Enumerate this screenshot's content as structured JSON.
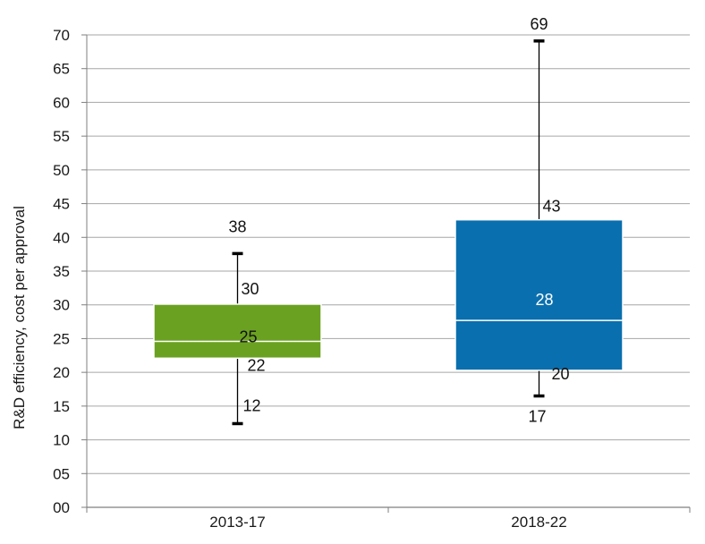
{
  "chart_data": {
    "type": "box",
    "title": "",
    "ylabel": "R&D efficiency, cost per approval",
    "ylim": [
      0,
      70
    ],
    "ytick_values": [
      0,
      5,
      10,
      15,
      20,
      25,
      30,
      35,
      40,
      45,
      50,
      55,
      60,
      65,
      70
    ],
    "ytick_labels": [
      "00",
      "05",
      "10",
      "15",
      "20",
      "25",
      "30",
      "35",
      "40",
      "45",
      "50",
      "55",
      "60",
      "65",
      "70"
    ],
    "grid": true,
    "categories": [
      "2013-17",
      "2018-22"
    ],
    "boxes": [
      {
        "category": "2013-17",
        "color": "#6aa121",
        "whisker_low": 12.4,
        "q1": 22.1,
        "median": 24.6,
        "q3": 30.1,
        "whisker_high": 37.6,
        "labels": {
          "whisker_low": "12",
          "q1": "22",
          "median": "25",
          "q3": "30",
          "whisker_high": "38"
        }
      },
      {
        "category": "2018-22",
        "color": "#0a6fae",
        "whisker_low": 16.5,
        "q1": 20.3,
        "median": 27.7,
        "q3": 42.6,
        "whisker_high": 69.1,
        "labels": {
          "whisker_low": "17",
          "q1": "20",
          "median": "28",
          "q3": "43",
          "whisker_high": "69"
        }
      }
    ]
  }
}
